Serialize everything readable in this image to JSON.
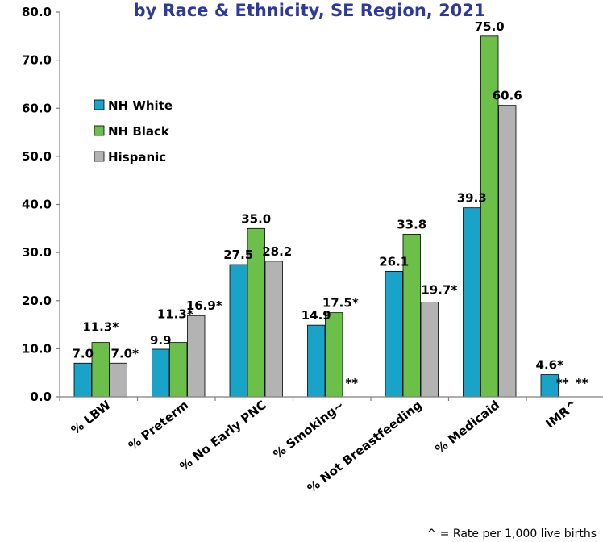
{
  "chart_data": {
    "type": "bar",
    "title": "by Race & Ethnicity, SE Region, 2021",
    "categories": [
      "% LBW",
      "% Preterm",
      "% No Early PNC",
      "% Smoking~",
      "% Not Breastfeeding",
      "% Medicaid",
      "IMR^"
    ],
    "series": [
      {
        "name": "NH White",
        "color": "#1AA3C8",
        "values": [
          7.0,
          9.9,
          27.5,
          14.9,
          26.1,
          39.3,
          4.6
        ],
        "labels": [
          "7.0",
          "9.9",
          "27.5",
          "14.9",
          "26.1",
          "39.3",
          "4.6*"
        ]
      },
      {
        "name": "NH Black",
        "color": "#6CC04A",
        "values": [
          11.3,
          11.3,
          35.0,
          17.5,
          33.8,
          75.0,
          null
        ],
        "labels": [
          "11.3*",
          "11.3*",
          "35.0",
          "17.5*",
          "33.8",
          "75.0",
          "**"
        ]
      },
      {
        "name": "Hispanic",
        "color": "#B3B3B3",
        "values": [
          7.0,
          16.9,
          28.2,
          null,
          19.7,
          60.6,
          null
        ],
        "labels": [
          "7.0*",
          "16.9*",
          "28.2",
          "**",
          "19.7*",
          "60.6",
          "**"
        ]
      }
    ],
    "ylim": [
      0,
      80
    ],
    "yticks": [
      "0.0",
      "10.0",
      "20.0",
      "30.0",
      "40.0",
      "50.0",
      "60.0",
      "70.0",
      "80.0"
    ],
    "xlabel": "",
    "ylabel": "",
    "legend": "top-left",
    "grid": false,
    "footnote": "^ = Rate per 1,000 live births"
  }
}
